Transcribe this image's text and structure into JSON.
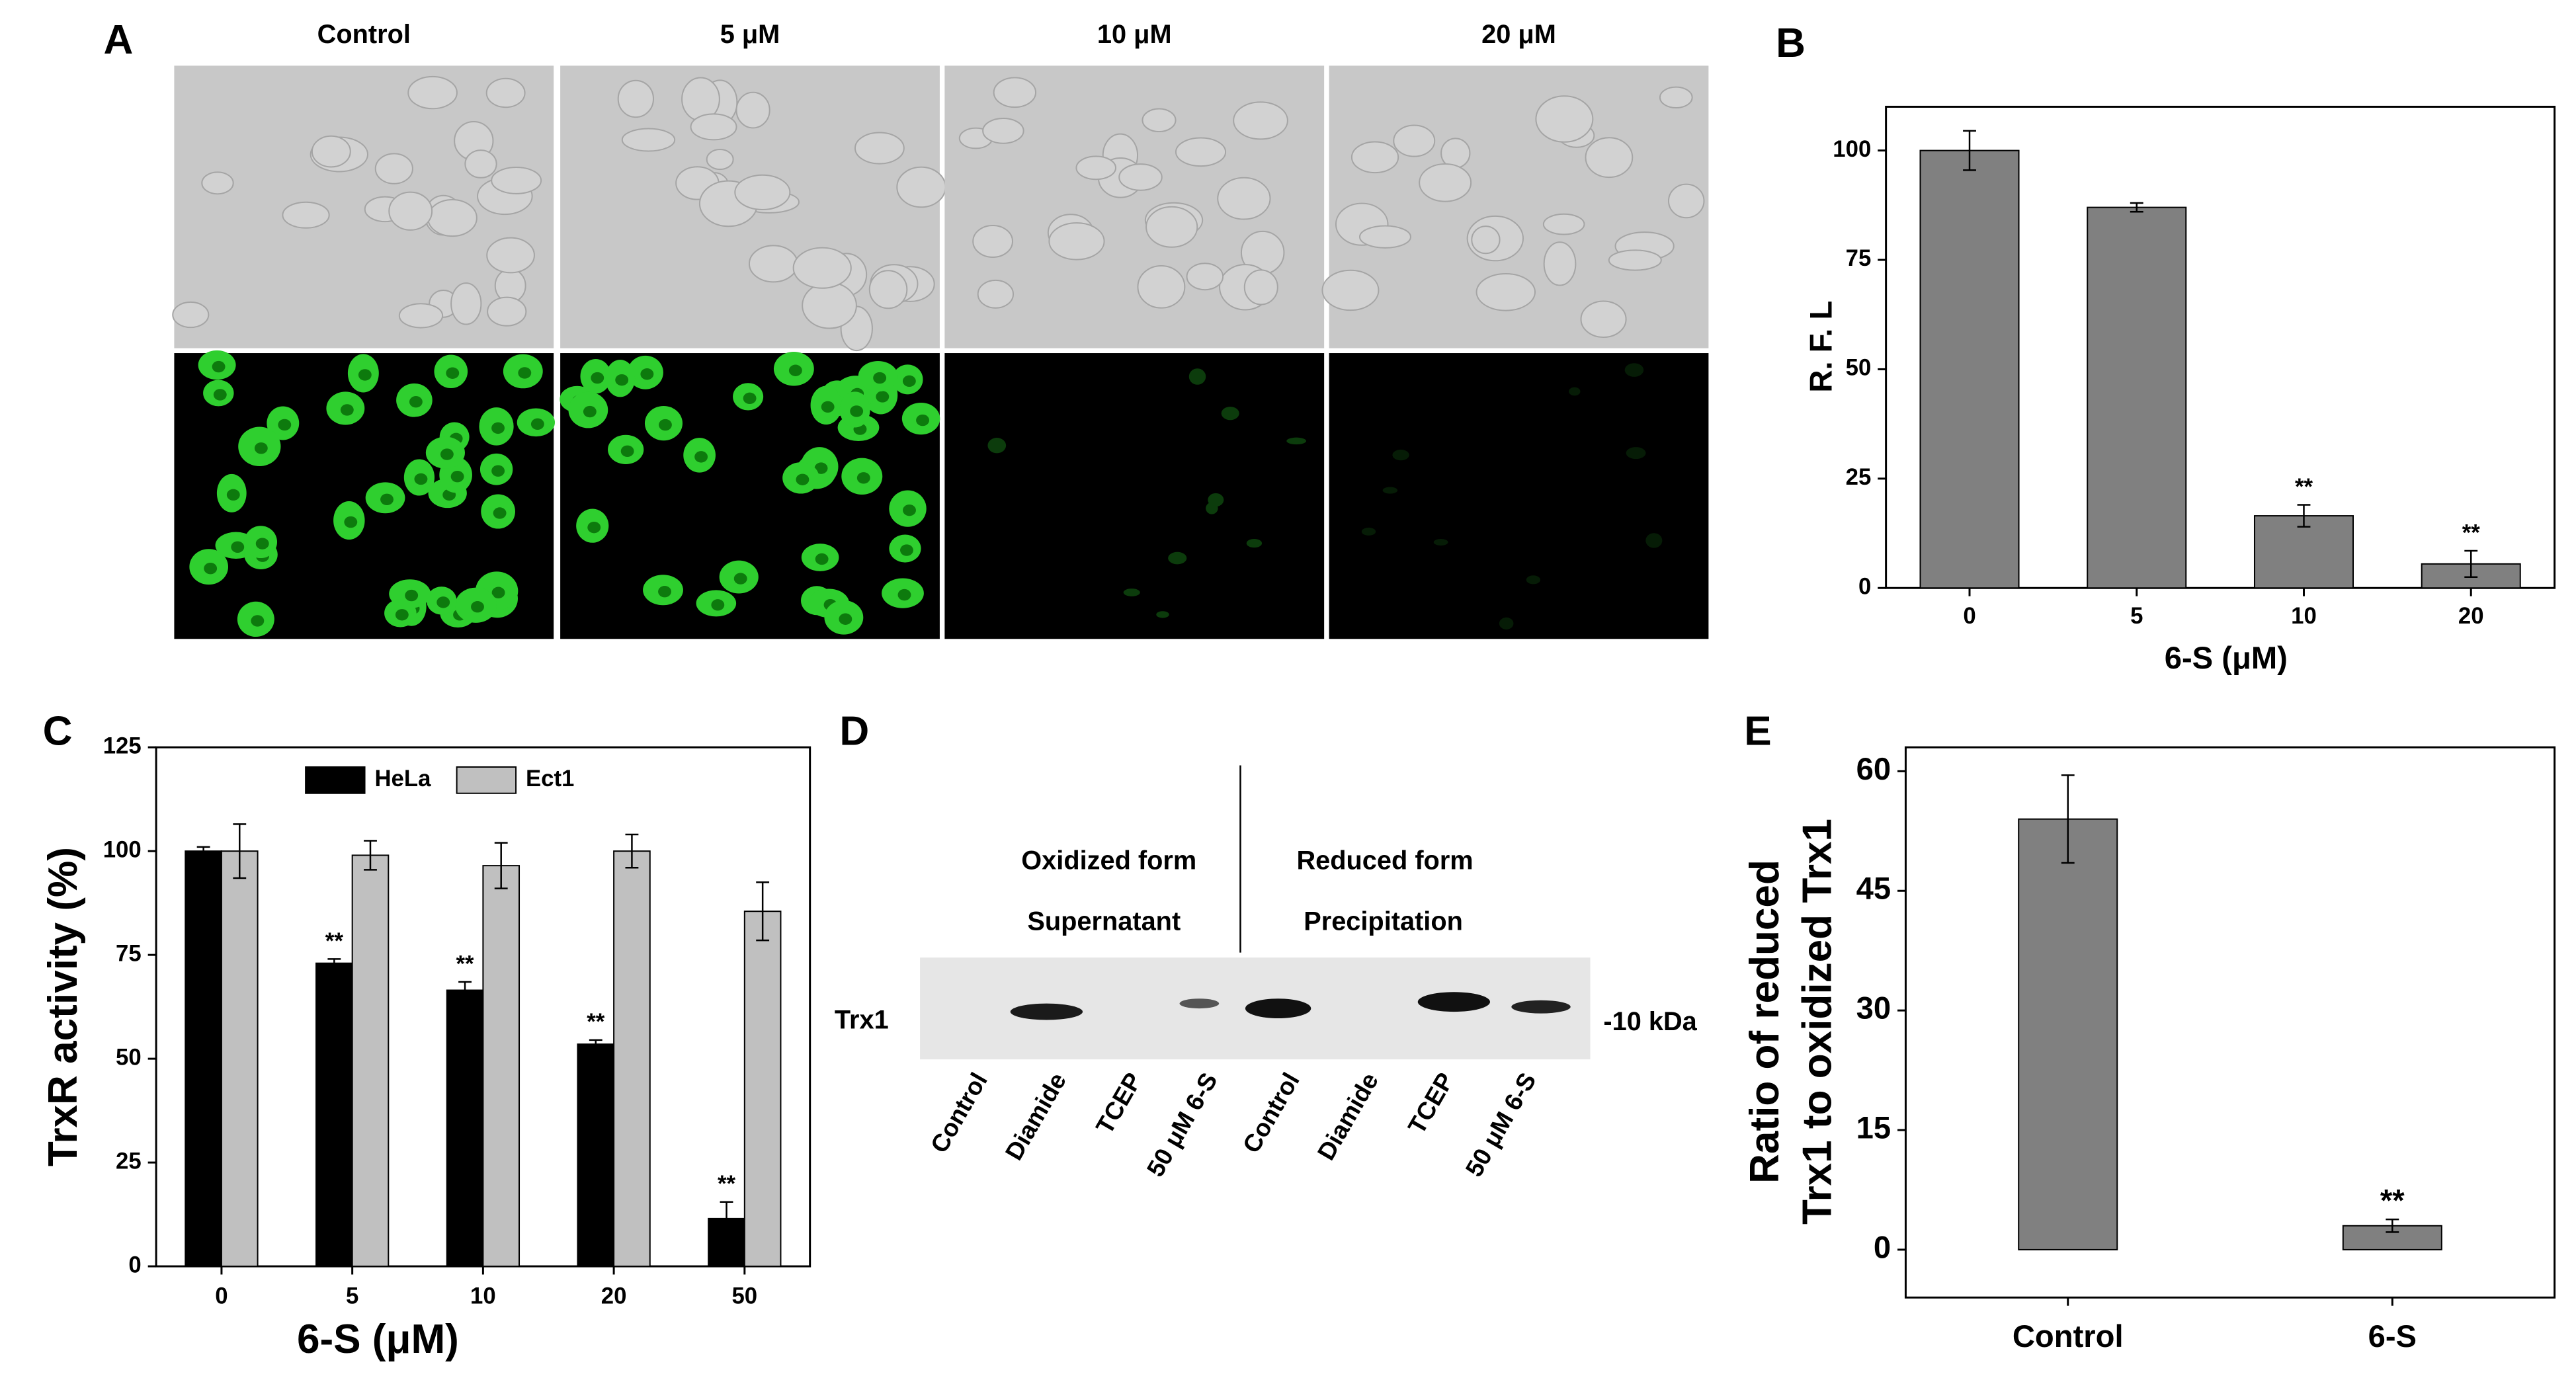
{
  "panel_a": {
    "label": "A",
    "columns": [
      "Control",
      "5 μM",
      "10 μM",
      "20 μM"
    ]
  },
  "panel_d": {
    "label": "D",
    "left_header": [
      "Oxidized form",
      "Supernatant"
    ],
    "right_header": [
      "Reduced form",
      "Precipitation"
    ],
    "band_label": "Trx1",
    "size_marker": "-10 kDa",
    "lanes": [
      "Control",
      "Diamide",
      "TCEP",
      "50 μM 6-S",
      "Control",
      "Diamide",
      "TCEP",
      "50 μM 6-S"
    ]
  },
  "chart_data": [
    {
      "type": "bar",
      "panel": "B",
      "ylabel": "R. F. L",
      "xlabel": "6-S (μM)",
      "categories": [
        "0",
        "5",
        "10",
        "20"
      ],
      "values": [
        100,
        87,
        16.5,
        5.5
      ],
      "errors": [
        4.5,
        1,
        2.5,
        3
      ],
      "significance": [
        null,
        null,
        "**",
        "**"
      ],
      "color": "#808080",
      "ylim": [
        0,
        110
      ],
      "yticks": [
        0,
        25,
        50,
        75,
        100
      ]
    },
    {
      "type": "bar",
      "panel": "C",
      "ylabel": "TrxR activity (%)",
      "xlabel": "6-S (μM)",
      "categories": [
        "0",
        "5",
        "10",
        "20",
        "50"
      ],
      "series": [
        {
          "name": "HeLa",
          "color": "#000000",
          "values": [
            100,
            73,
            66.5,
            53.5,
            11.5
          ],
          "errors": [
            1,
            1,
            2,
            1,
            4
          ],
          "significance": [
            null,
            "**",
            "**",
            "**",
            "**"
          ]
        },
        {
          "name": "Ect1",
          "color": "#c0c0c0",
          "values": [
            100,
            99,
            96.5,
            100,
            85.5
          ],
          "errors": [
            6.5,
            3.5,
            5.5,
            4,
            7
          ]
        }
      ],
      "legend": "top",
      "ylim": [
        0,
        125
      ],
      "yticks": [
        0,
        25,
        50,
        75,
        100,
        125
      ]
    },
    {
      "type": "bar",
      "panel": "E",
      "ylabel": [
        "Ratio of reduced",
        "Trx1 to oxidized Trx1"
      ],
      "categories": [
        "Control",
        "6-S"
      ],
      "values": [
        54,
        3
      ],
      "errors": [
        5.5,
        0.8
      ],
      "significance": [
        null,
        "**"
      ],
      "color": "#808080",
      "ylim": [
        -6,
        63
      ],
      "yticks": [
        0,
        15,
        30,
        45,
        60
      ]
    }
  ]
}
